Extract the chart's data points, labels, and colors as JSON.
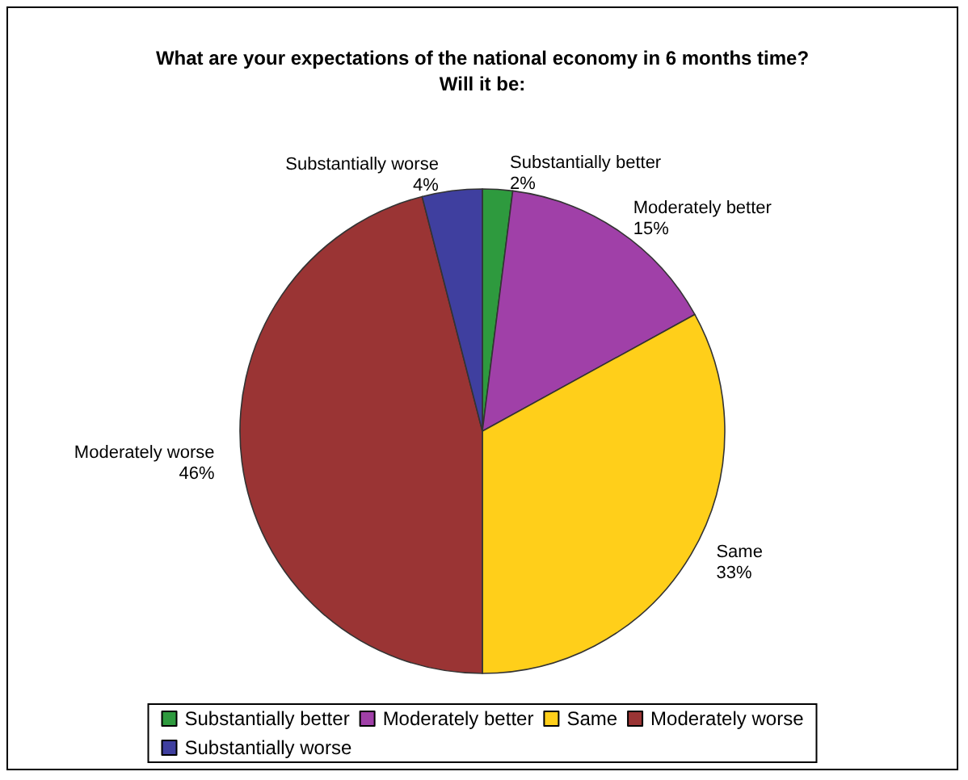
{
  "chart_data": {
    "type": "pie",
    "title": "What are your expectations of the national economy in 6 months time?\nWill it be:",
    "categories": [
      "Substantially better",
      "Moderately better",
      "Same",
      "Moderately worse",
      "Substantially worse"
    ],
    "values": [
      2,
      15,
      33,
      46,
      4
    ],
    "colors": [
      "#2e9a3e",
      "#a040a8",
      "#ffcf1a",
      "#9a3434",
      "#3f3f9f"
    ],
    "value_labels": [
      "2%",
      "15%",
      "33%",
      "46%",
      "4%"
    ],
    "legend": "bottom"
  }
}
